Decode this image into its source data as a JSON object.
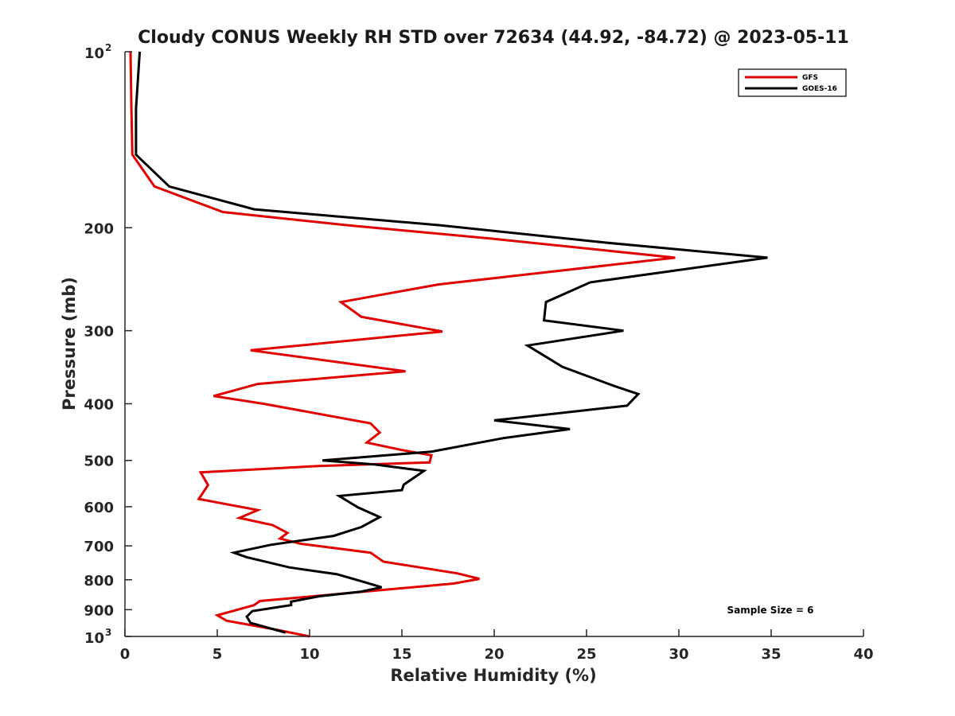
{
  "chart_data": {
    "type": "line",
    "title": "Cloudy CONUS Weekly RH STD over 72634 (44.92, -84.72) @ 2023-05-11",
    "xlabel": "Relative Humidity (%)",
    "ylabel": "Pressure (mb)",
    "xlim": [
      0,
      40
    ],
    "ylim": [
      100,
      1000
    ],
    "y_scale": "log",
    "y_reversed": true,
    "grid": false,
    "legend_position": "top-right",
    "x_ticks": [
      0,
      5,
      10,
      15,
      20,
      25,
      30,
      35,
      40
    ],
    "x_tick_labels": [
      "0",
      "5",
      "10",
      "15",
      "20",
      "25",
      "30",
      "35",
      "40"
    ],
    "y_ticks": [
      200,
      300,
      400,
      500,
      600,
      700,
      800,
      900
    ],
    "y_tick_labels": [
      "200",
      "300",
      "400",
      "500",
      "600",
      "700",
      "800",
      "900"
    ],
    "y_tick_top": {
      "base": "10",
      "exp": "2",
      "value": 100
    },
    "y_tick_bottom": {
      "base": "10",
      "exp": "3",
      "value": 1000
    },
    "annotation": "Sample Size = 6",
    "series": [
      {
        "name": "GFS",
        "color": "#e00000",
        "points": [
          [
            0.3,
            100
          ],
          [
            0.35,
            125
          ],
          [
            0.4,
            150
          ],
          [
            1.6,
            170
          ],
          [
            5.3,
            188
          ],
          [
            12.0,
            198
          ],
          [
            20.0,
            209
          ],
          [
            29.8,
            225
          ],
          [
            17.0,
            250
          ],
          [
            11.7,
            268
          ],
          [
            12.8,
            284
          ],
          [
            17.2,
            301
          ],
          [
            6.8,
            324
          ],
          [
            15.2,
            352
          ],
          [
            7.2,
            370
          ],
          [
            4.8,
            388
          ],
          [
            7.5,
            400
          ],
          [
            13.3,
            432
          ],
          [
            13.8,
            448
          ],
          [
            13.1,
            466
          ],
          [
            15.0,
            480
          ],
          [
            16.6,
            490
          ],
          [
            16.5,
            504
          ],
          [
            10.5,
            511
          ],
          [
            4.1,
            524
          ],
          [
            4.5,
            551
          ],
          [
            4.0,
            582
          ],
          [
            7.2,
            608
          ],
          [
            6.2,
            627
          ],
          [
            8.0,
            645
          ],
          [
            8.8,
            665
          ],
          [
            8.4,
            680
          ],
          [
            9.5,
            694
          ],
          [
            13.3,
            719
          ],
          [
            14.0,
            745
          ],
          [
            18.0,
            780
          ],
          [
            19.2,
            797
          ],
          [
            17.8,
            812
          ],
          [
            7.3,
            870
          ],
          [
            7.0,
            884
          ],
          [
            5.0,
            920
          ],
          [
            5.5,
            940
          ],
          [
            8.0,
            971
          ],
          [
            10.0,
            1000
          ]
        ]
      },
      {
        "name": "GOES-16",
        "color": "#000000",
        "points": [
          [
            0.8,
            100
          ],
          [
            0.6,
            125
          ],
          [
            0.6,
            150
          ],
          [
            2.4,
            170
          ],
          [
            7.0,
            186
          ],
          [
            17.0,
            198
          ],
          [
            26.0,
            212
          ],
          [
            34.8,
            225
          ],
          [
            25.2,
            248
          ],
          [
            22.8,
            268
          ],
          [
            22.7,
            288
          ],
          [
            27.0,
            300
          ],
          [
            21.8,
            318
          ],
          [
            23.7,
            346
          ],
          [
            26.5,
            373
          ],
          [
            27.8,
            385
          ],
          [
            27.2,
            403
          ],
          [
            20.0,
            427
          ],
          [
            24.1,
            442
          ],
          [
            20.5,
            458
          ],
          [
            16.6,
            483
          ],
          [
            10.7,
            500
          ],
          [
            13.5,
            508
          ],
          [
            16.2,
            521
          ],
          [
            15.1,
            550
          ],
          [
            15.0,
            562
          ],
          [
            11.6,
            575
          ],
          [
            12.6,
            601
          ],
          [
            13.8,
            625
          ],
          [
            12.8,
            650
          ],
          [
            11.3,
            673
          ],
          [
            7.9,
            697
          ],
          [
            5.9,
            719
          ],
          [
            6.6,
            732
          ],
          [
            8.9,
            762
          ],
          [
            11.5,
            783
          ],
          [
            13.0,
            808
          ],
          [
            13.9,
            824
          ],
          [
            12.8,
            838
          ],
          [
            10.5,
            854
          ],
          [
            9.0,
            872
          ],
          [
            9.0,
            884
          ],
          [
            6.9,
            905
          ],
          [
            6.6,
            925
          ],
          [
            6.8,
            948
          ],
          [
            8.7,
            985
          ]
        ]
      }
    ]
  }
}
